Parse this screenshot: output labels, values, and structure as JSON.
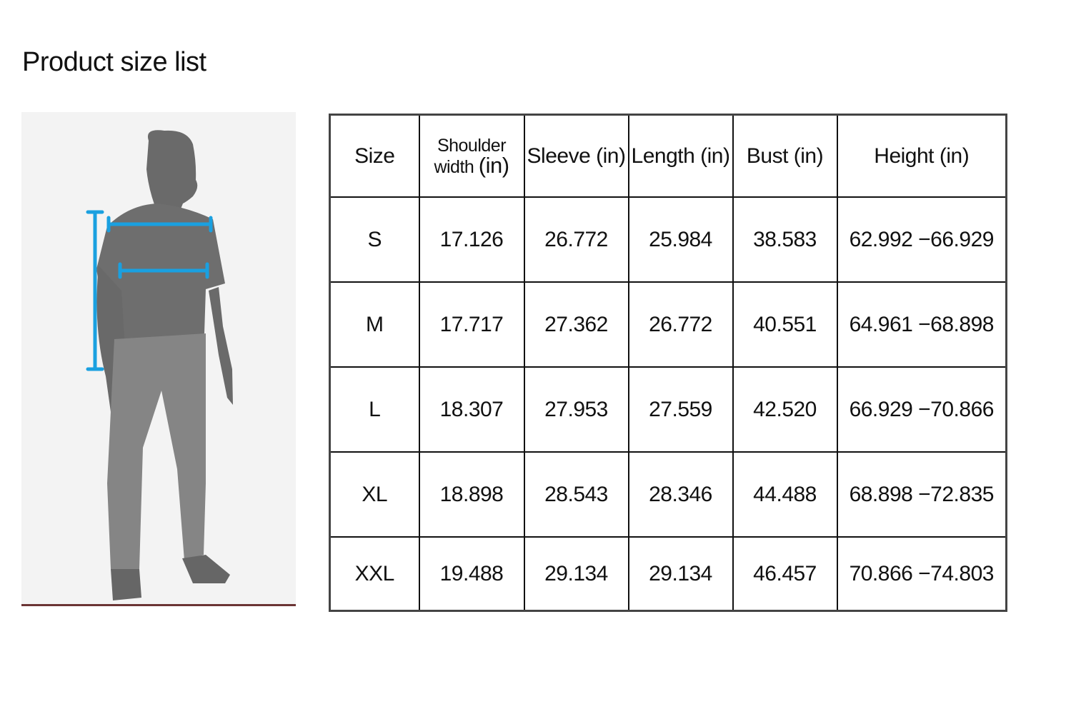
{
  "title": "Product size list",
  "figure": {
    "accent_color": "#1aa0e0",
    "body_color": "#6e6e6e",
    "pants_color": "#858585"
  },
  "table": {
    "headers": {
      "size": "Size",
      "shoulder_line1": "Shoulder",
      "shoulder_line2a": "width ",
      "shoulder_line2b": "(in)",
      "sleeve": "Sleeve (in)",
      "length": "Length (in)",
      "bust": "Bust (in)",
      "height": "Height (in)"
    },
    "rows": [
      {
        "size": "S",
        "shoulder": "17.126",
        "sleeve": "26.772",
        "length": "25.984",
        "bust": "38.583",
        "height": "62.992 −66.929"
      },
      {
        "size": "M",
        "shoulder": "17.717",
        "sleeve": "27.362",
        "length": "26.772",
        "bust": "40.551",
        "height": "64.961 −68.898"
      },
      {
        "size": "L",
        "shoulder": "18.307",
        "sleeve": "27.953",
        "length": "27.559",
        "bust": "42.520",
        "height": "66.929 −70.866"
      },
      {
        "size": "XL",
        "shoulder": "18.898",
        "sleeve": "28.543",
        "length": "28.346",
        "bust": "44.488",
        "height": "68.898 −72.835"
      },
      {
        "size": "XXL",
        "shoulder": "19.488",
        "sleeve": "29.134",
        "length": "29.134",
        "bust": "46.457",
        "height": "70.866 −74.803"
      }
    ]
  }
}
